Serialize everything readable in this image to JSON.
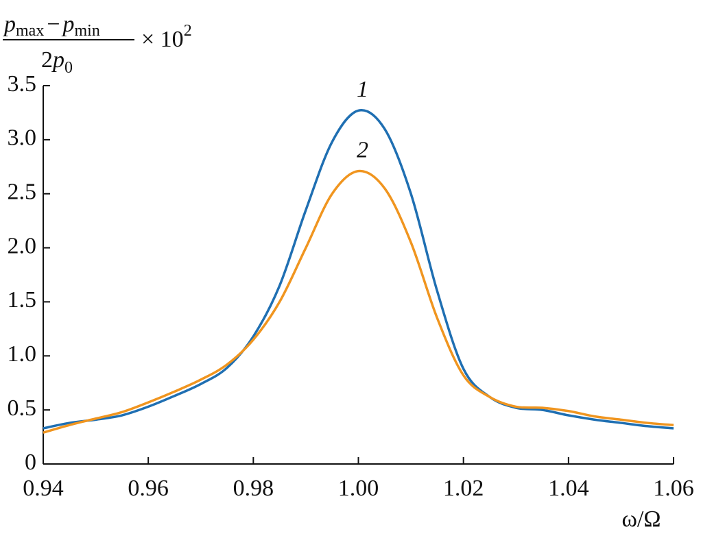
{
  "chart_data": {
    "type": "line",
    "ylabel": {
      "numerator": [
        "p",
        "max",
        "−",
        "p",
        "min"
      ],
      "denominator": [
        "2",
        "p",
        "0"
      ],
      "multiplier": [
        "× 10",
        "2"
      ]
    },
    "xlabel": "ω/Ω",
    "x": [
      0.94,
      0.945,
      0.95,
      0.955,
      0.96,
      0.965,
      0.97,
      0.975,
      0.98,
      0.985,
      0.99,
      0.995,
      1.0,
      1.005,
      1.01,
      1.015,
      1.02,
      1.025,
      1.03,
      1.035,
      1.04,
      1.045,
      1.05,
      1.055,
      1.06
    ],
    "series": [
      {
        "name": "1",
        "color": "#1f6fb2",
        "values": [
          0.33,
          0.38,
          0.41,
          0.45,
          0.53,
          0.63,
          0.74,
          0.89,
          1.18,
          1.65,
          2.35,
          2.98,
          3.27,
          3.1,
          2.5,
          1.6,
          0.88,
          0.62,
          0.52,
          0.5,
          0.45,
          0.41,
          0.38,
          0.35,
          0.33
        ]
      },
      {
        "name": "2",
        "color": "#f0951f",
        "values": [
          0.29,
          0.36,
          0.42,
          0.48,
          0.57,
          0.67,
          0.78,
          0.92,
          1.15,
          1.5,
          2.0,
          2.5,
          2.71,
          2.55,
          2.05,
          1.35,
          0.82,
          0.62,
          0.53,
          0.52,
          0.49,
          0.44,
          0.41,
          0.38,
          0.36
        ]
      }
    ],
    "xlim": [
      0.94,
      1.06
    ],
    "xticks": [
      0.94,
      0.96,
      0.98,
      {
        "value": 1,
        "label": "1.00"
      },
      1.02,
      1.04,
      1.06
    ],
    "ylim": [
      0,
      3.5
    ],
    "yticks": [
      0,
      0.5,
      {
        "value": 1,
        "label": "1.0"
      },
      1.5,
      {
        "value": 2,
        "label": "2.0"
      },
      2.5,
      {
        "value": 3,
        "label": "3.0"
      },
      3.5
    ],
    "grid": false
  }
}
